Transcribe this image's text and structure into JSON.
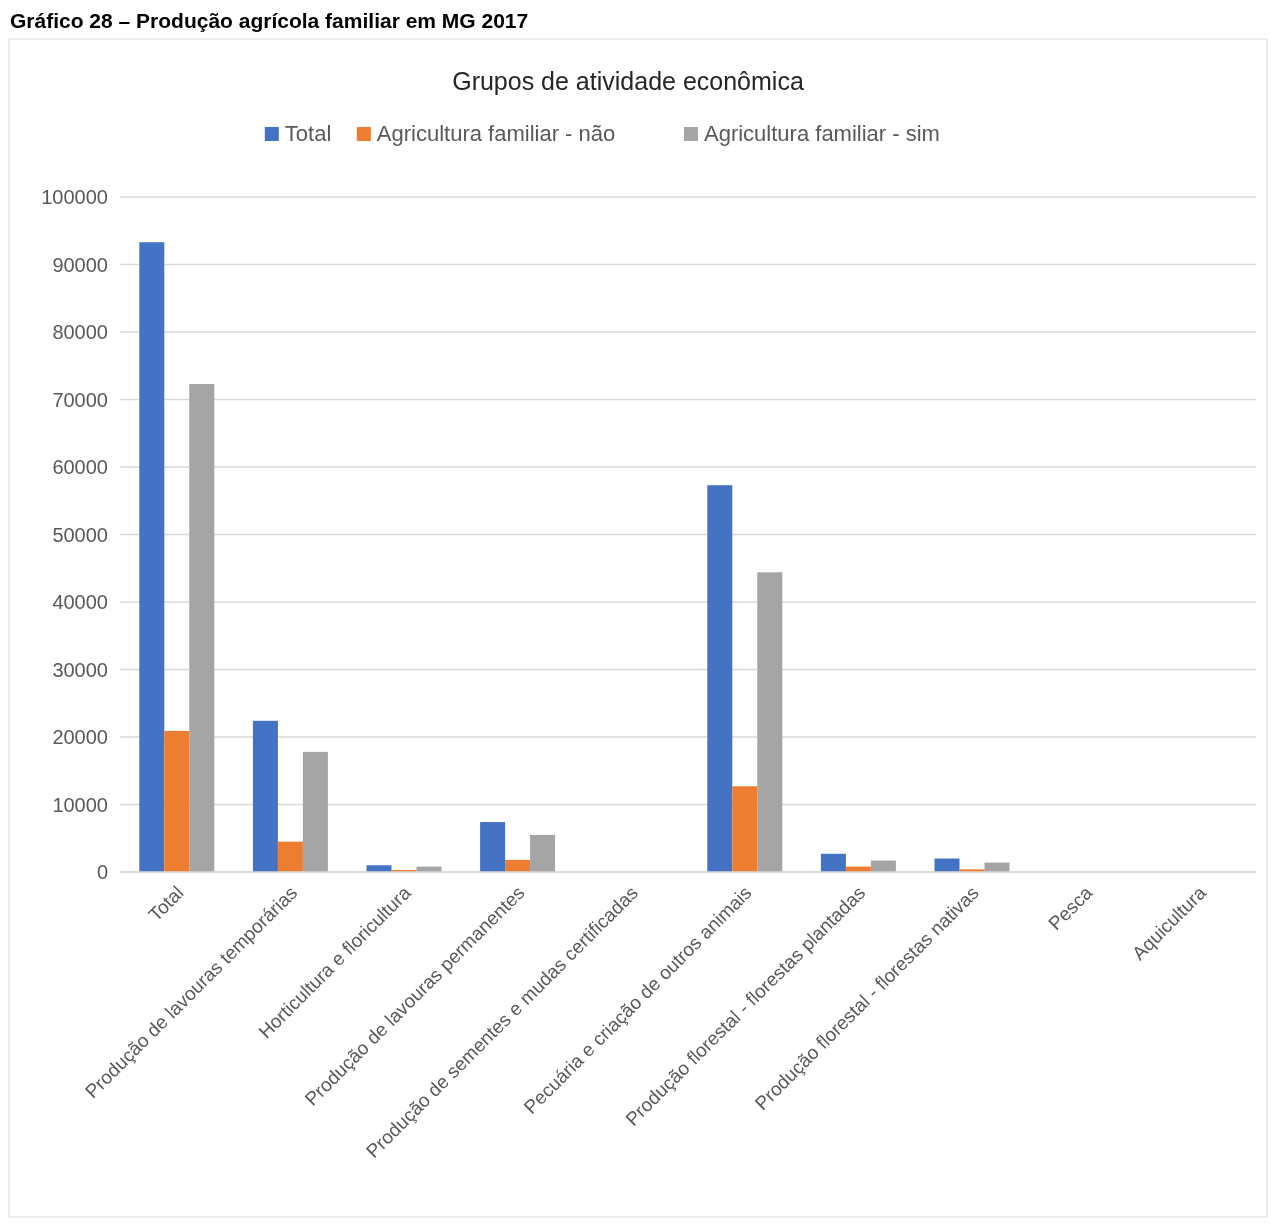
{
  "chart_data": {
    "type": "bar",
    "title": "Grupos de atividade econômica",
    "annotations": [
      "Gráfico 28 – Produção agrícola familiar em MG 2017"
    ],
    "categories": [
      "Total",
      "Produção de lavouras temporárias",
      "Horticultura e floricultura",
      "Produção de lavouras permanentes",
      "Produção de sementes e mudas certificadas",
      "Pecuária e criação de outros animais",
      "Produção florestal - florestas plantadas",
      "Produção florestal - florestas nativas",
      "Pesca",
      "Aquicultura"
    ],
    "series": [
      {
        "name": "Total",
        "color": "#4472c4",
        "values": [
          93300,
          22400,
          1000,
          7400,
          0,
          57300,
          2700,
          2000,
          0,
          null
        ]
      },
      {
        "name": "Agricultura familiar - não",
        "color": "#ed7d31",
        "values": [
          20900,
          4500,
          300,
          1800,
          0,
          12700,
          800,
          400,
          0,
          null
        ]
      },
      {
        "name": "Agricultura familiar - sim",
        "color": "#a5a5a5",
        "values": [
          72300,
          17800,
          800,
          5500,
          0,
          44400,
          1700,
          1400,
          0,
          null
        ]
      }
    ],
    "ylim": [
      0,
      100000
    ],
    "yticks": [
      0,
      10000,
      20000,
      30000,
      40000,
      50000,
      60000,
      70000,
      80000,
      90000,
      100000
    ],
    "grid": "y",
    "legend": "top"
  }
}
